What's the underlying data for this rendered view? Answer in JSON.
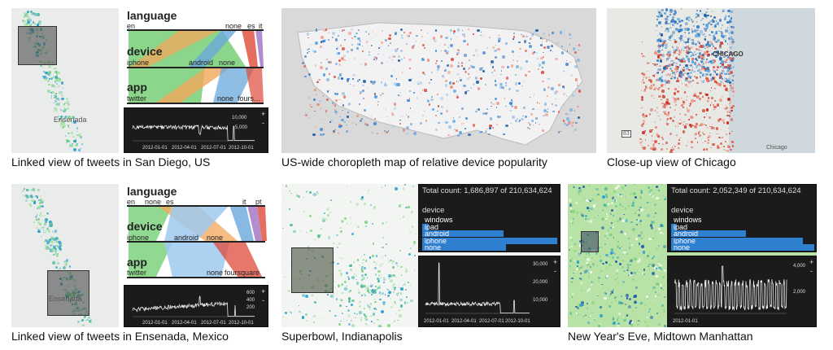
{
  "captions": [
    "Linked view of tweets in San Diego, US",
    "US-wide choropleth map of relative device popularity",
    "Close-up view of Chicago",
    "Linked view of tweets in Ensenada, Mexico",
    "Superbowl, Indianapolis",
    "New Year's Eve, Midtown Manhattan"
  ],
  "map_labels": {
    "ensenada": "Ensenada",
    "ensenada2": "Ensenada",
    "chicago": "CHICAGO",
    "chicago2": "Chicago",
    "hw": "83"
  },
  "panel1": {
    "headers": {
      "language": "language",
      "device": "device",
      "app": "app"
    },
    "language_cats": [
      "en",
      "none",
      "es",
      "it"
    ],
    "device_cats": [
      "iphone",
      "android",
      "none"
    ],
    "app_cats": [
      "twitter",
      "none",
      "fours..."
    ],
    "y_ticks": [
      "10,000",
      "5,000"
    ],
    "x_ticks": [
      "2012-01-01",
      "2012-04-01",
      "2012-07-01",
      "2012-10-01"
    ]
  },
  "panel4": {
    "headers": {
      "language": "language",
      "device": "device",
      "app": "app"
    },
    "language_cats": [
      "en",
      "none",
      "es",
      "it",
      "pt"
    ],
    "device_cats": [
      "iphone",
      "android",
      "none"
    ],
    "app_cats": [
      "twitter",
      "none",
      "foursquare"
    ],
    "y_ticks": [
      "600",
      "400",
      "200"
    ],
    "x_ticks": [
      "2012-01-01",
      "2012-04-01",
      "2012-07-01",
      "2012-10-01"
    ]
  },
  "panel5": {
    "total": "Total count: 1,686,897 of 210,634,624",
    "device_title": "device",
    "devices": [
      {
        "label": "windows",
        "share": 0.0
      },
      {
        "label": "ipad",
        "share": 0.05
      },
      {
        "label": "android",
        "share": 0.6
      },
      {
        "label": "iphone",
        "share": 1.0
      },
      {
        "label": "none",
        "share": 0.62
      }
    ],
    "y_ticks": [
      "30,000",
      "20,000",
      "10,000"
    ],
    "x_ticks": [
      "2012-01-01",
      "2012-04-01",
      "2012-07-01",
      "2012-10-01"
    ]
  },
  "panel6": {
    "total": "Total count: 2,052,349 of 210,634,624",
    "device_title": "device",
    "devices": [
      {
        "label": "windows",
        "share": 0.0
      },
      {
        "label": "ipad",
        "share": 0.04
      },
      {
        "label": "android",
        "share": 0.52
      },
      {
        "label": "iphone",
        "share": 0.92
      },
      {
        "label": "none",
        "share": 1.0
      }
    ],
    "y_ticks": [
      "4,000",
      "2,000"
    ],
    "x_ticks": [
      "2012-01-01"
    ]
  },
  "zoom": {
    "plus": "+",
    "minus": "-"
  },
  "colors": {
    "green": "#7ed27e",
    "blue": "#2f7fd0",
    "orange": "#f2a65a",
    "red": "#e04a3a",
    "dark_bg": "#1b1b1b"
  }
}
